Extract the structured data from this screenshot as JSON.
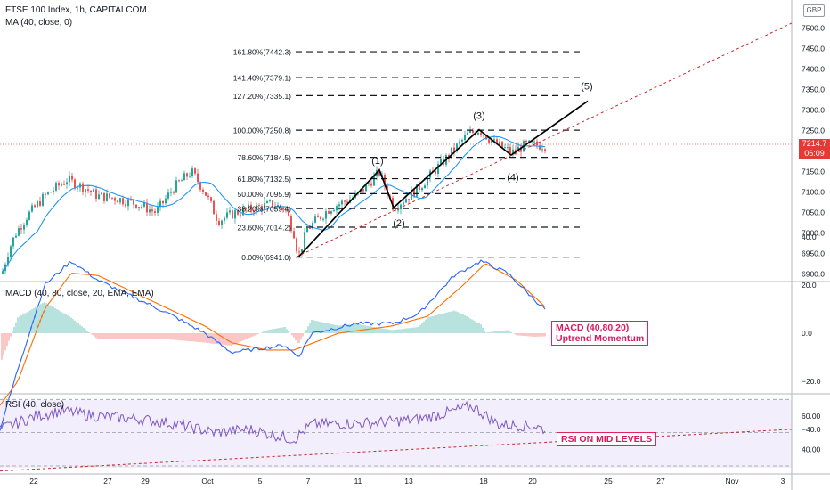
{
  "header": {
    "symbol_line": "FTSE 100 Index, 1h, CAPITALCOM",
    "ma_line": "MA (40, close, 0)",
    "currency": "GBP"
  },
  "price_badge": {
    "price": "7214.7",
    "countdown": "06:09",
    "color": "#e53935"
  },
  "colors": {
    "candle_up": "#26a69a",
    "candle_down": "#ef5350",
    "ma": "#2196f3",
    "macd": "#2962ff",
    "signal": "#ff6d00",
    "rsi": "#7e57c2",
    "annotation": "#d81b60"
  },
  "chart_data": [
    {
      "type": "candlestick",
      "title": "FTSE 100 Index, 1h, CAPITALCOM",
      "ylim": [
        6880,
        7550
      ],
      "y_ticks": [
        "7500.0",
        "7450.0",
        "7400.0",
        "7350.0",
        "7300.0",
        "7250.0",
        "7200.0",
        "7150.0",
        "7100.0",
        "7050.0",
        "7000.0",
        "6950.0",
        "6900.0"
      ],
      "x_ticks": [
        "22",
        "27",
        "29",
        "Oct",
        "5",
        "7",
        "11",
        "13",
        "18",
        "20",
        "25",
        "27",
        "Nov",
        "3"
      ],
      "series": [
        {
          "name": "MA (40, close, 0)"
        }
      ],
      "fib_levels": [
        {
          "label": "161.80%(7442.3)",
          "value": 7442.3
        },
        {
          "label": "141.40%(7379.1)",
          "value": 7379.1
        },
        {
          "label": "127.20%(7335.1)",
          "value": 7335.1
        },
        {
          "label": "100.00%(7250.8)",
          "value": 7250.8
        },
        {
          "label": "78.60%(7184.5)",
          "value": 7184.5
        },
        {
          "label": "61.80%(7132.5)",
          "value": 7132.5
        },
        {
          "label": "50.00%(7095.9)",
          "value": 7095.9
        },
        {
          "label": "38.20%(7059.4)",
          "value": 7059.4
        },
        {
          "label": "23.60%(7014.2)",
          "value": 7014.2
        },
        {
          "label": "0.00%(6941.0)",
          "value": 6941.0
        }
      ],
      "wave_labels": [
        "(1)",
        "(2)",
        "(3)",
        "(4)",
        "(5)"
      ],
      "last_price": 7214.7
    },
    {
      "type": "line",
      "title": "MACD (40, 80, close, 20, EMA, EMA)",
      "ylim": [
        -48,
        42
      ],
      "y_ticks": [
        "40.0",
        "20.0",
        "0.0",
        "−20.0",
        "−40.0"
      ],
      "series": [
        {
          "name": "MACD"
        },
        {
          "name": "Signal"
        },
        {
          "name": "Histogram"
        }
      ],
      "annotation": [
        "MACD (40,80,20)",
        "Uptrend Momentum"
      ]
    },
    {
      "type": "line",
      "title": "RSI (40, close)",
      "ylim": [
        28,
        77
      ],
      "y_ticks": [
        "60.00",
        "40.00"
      ],
      "bands": [
        70,
        50,
        30
      ],
      "annotation": "RSI ON MID LEVELS"
    }
  ]
}
